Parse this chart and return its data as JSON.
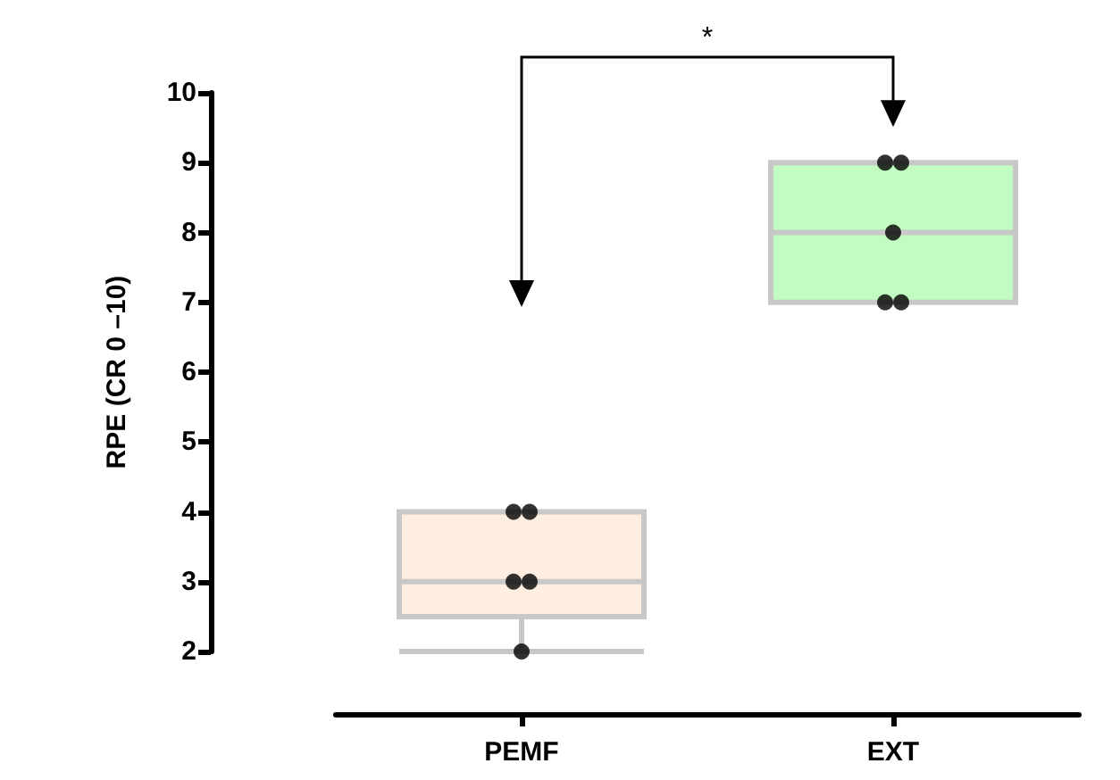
{
  "chart_data": {
    "type": "box",
    "ylabel": "RPE (CR 0 –10)",
    "categories": [
      "PEMF",
      "EXT"
    ],
    "ylim": [
      2,
      10
    ],
    "yticks": [
      2,
      3,
      4,
      5,
      6,
      7,
      8,
      9,
      10
    ],
    "grid": false,
    "annotations": [
      "*"
    ],
    "series": [
      {
        "colors": [
          "#fdeee0",
          "#c2fcc2"
        ],
        "boxes": [
          {
            "low": 2,
            "q1": 2.5,
            "median": 3,
            "q3": 4,
            "high": 4
          },
          {
            "low": 7,
            "q1": 7,
            "median": 8,
            "q3": 9,
            "high": 9
          }
        ]
      },
      {
        "type": "scatter",
        "color": "#000000",
        "marker": "circle",
        "x": [
          "PEMF",
          "PEMF",
          "PEMF",
          "PEMF",
          "PEMF",
          "EXT",
          "EXT",
          "EXT",
          "EXT",
          "EXT"
        ],
        "values": [
          2,
          3,
          3,
          4,
          4,
          7,
          7,
          8,
          9,
          9
        ]
      }
    ]
  }
}
